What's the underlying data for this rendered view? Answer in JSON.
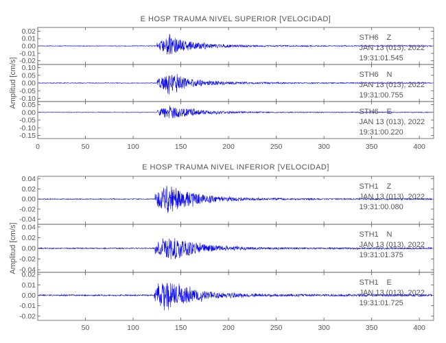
{
  "chart_data": [
    {
      "type": "line",
      "title": "E HOSP TRAUMA NIVEL SUPERIOR [VELOCIDAD]",
      "ylabel": "Amplitud [cm/s]",
      "xlabel": "",
      "xlim": [
        0,
        415
      ],
      "xticks": [
        0,
        50,
        100,
        150,
        200,
        250,
        300,
        350,
        400
      ],
      "line_color": "#0000ee",
      "panels": [
        {
          "station": "STH6",
          "component": "Z",
          "date": "JAN 13 (013), 2022",
          "start_time": "19:31:01.545",
          "ylim": [
            -0.025,
            0.025
          ],
          "yticks": [
            "0.02",
            "0.01",
            "0.00",
            "-0.01",
            "-0.02"
          ],
          "trace": {
            "onset_s": 125,
            "peak_s": 138,
            "peak_amplitude": 0.017,
            "noise_amplitude": 0.0004,
            "end_s": 413
          }
        },
        {
          "station": "STH6",
          "component": "N",
          "date": "JAN 13 (013), 2022",
          "start_time": "19:31:00.755",
          "ylim": [
            -0.12,
            0.12
          ],
          "yticks": [
            "0.10",
            "0.05",
            "0.00",
            "-0.05",
            "-0.10"
          ],
          "trace": {
            "onset_s": 125,
            "peak_s": 138,
            "peak_amplitude": 0.08,
            "noise_amplitude": 0.002,
            "end_s": 413
          }
        },
        {
          "station": "STH6",
          "component": "E",
          "date": "JAN 13 (013), 2022",
          "start_time": "19:31:00.220",
          "ylim": [
            -0.17,
            0.07
          ],
          "yticks": [
            "0.05",
            "0.00",
            "-0.05",
            "-0.10",
            "-0.15"
          ],
          "trace": {
            "onset_s": 125,
            "peak_s": 138,
            "peak_amplitude": 0.06,
            "noise_amplitude": 0.0015,
            "end_s": 413
          }
        }
      ]
    },
    {
      "type": "line",
      "title": "E HOSP TRAUMA NIVEL INFERIOR [VELOCIDAD]",
      "ylabel": "Amplitud [cm/s]",
      "xlabel": "",
      "xlim": [
        0,
        415
      ],
      "xticks": [
        50,
        100,
        150,
        200,
        250,
        300,
        350,
        400
      ],
      "line_color": "#0000ee",
      "panels": [
        {
          "station": "STH1",
          "component": "Z",
          "date": "JAN 13 (013), 2022",
          "start_time": "19:31:00.080",
          "ylim": [
            -0.05,
            0.045
          ],
          "yticks": [
            "0.04",
            "0.02",
            "0.00",
            "-0.02",
            "-0.04"
          ],
          "trace": {
            "onset_s": 123,
            "peak_s": 137,
            "peak_amplitude": 0.04,
            "noise_amplitude": 0.0008,
            "end_s": 413
          }
        },
        {
          "station": "STH1",
          "component": "N",
          "date": "JAN 13 (013), 2022",
          "start_time": "19:31:01.375",
          "ylim": [
            -0.045,
            0.045
          ],
          "yticks": [
            "0.04",
            "0.02",
            "0.00",
            "-0.02",
            "-0.04"
          ],
          "trace": {
            "onset_s": 123,
            "peak_s": 140,
            "peak_amplitude": 0.03,
            "noise_amplitude": 0.0009,
            "end_s": 413
          }
        },
        {
          "station": "STH1",
          "component": "E",
          "date": "JAN 13 (013), 2022",
          "start_time": "19:31:01.725",
          "ylim": [
            -0.024,
            0.022
          ],
          "yticks": [
            "0.02",
            "0.01",
            "0.00",
            "-0.01",
            "-0.02"
          ],
          "trace": {
            "onset_s": 122,
            "peak_s": 135,
            "peak_amplitude": 0.02,
            "noise_amplitude": 0.0006,
            "end_s": 413
          }
        }
      ]
    }
  ]
}
